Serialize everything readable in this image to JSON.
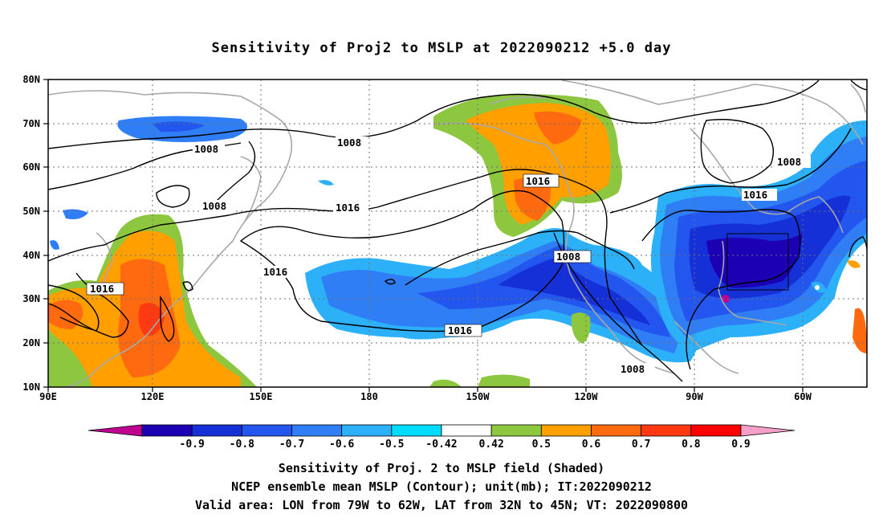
{
  "title": "Sensitivity of Proj2 to MSLP at 2022090212 +5.0 day",
  "map": {
    "lon_labels": [
      "90E",
      "120E",
      "150E",
      "180",
      "150W",
      "120W",
      "90W",
      "60W"
    ],
    "lat_labels": [
      "10N",
      "20N",
      "30N",
      "40N",
      "50N",
      "60N",
      "70N",
      "80N"
    ],
    "contour_labels": [
      "1008",
      "1008",
      "1016",
      "1008",
      "1016",
      "1016",
      "1008",
      "1016",
      "1016",
      "1016",
      "1008"
    ],
    "lon_range": [
      90,
      317
    ],
    "lat_range": [
      10,
      80
    ],
    "valid_area_box": {
      "lon": [
        -79,
        -62
      ],
      "lat": [
        32,
        45
      ]
    }
  },
  "colorbar": {
    "labels": [
      "-0.9",
      "-0.8",
      "-0.7",
      "-0.6",
      "-0.5",
      "-0.42",
      "0.42",
      "0.5",
      "0.6",
      "0.7",
      "0.8",
      "0.9"
    ],
    "colors": [
      "#c00090",
      "#1b00b4",
      "#1630d8",
      "#2256ee",
      "#2f7ef6",
      "#2cb0f8",
      "#00dcff",
      "#ffffff",
      "#8dc63f",
      "#ff9f00",
      "#ff6a10",
      "#ff3a10",
      "#ff0000",
      "#f5a0c8"
    ]
  },
  "captions": {
    "line1": "Sensitivity of Proj. 2 to MSLP field (Shaded)",
    "line2": "NCEP ensemble mean MSLP (Contour); unit(mb); IT:2022090212",
    "line3": "Valid area: LON from 79W to 62W, LAT from 32N to 45N; VT: 2022090800"
  }
}
